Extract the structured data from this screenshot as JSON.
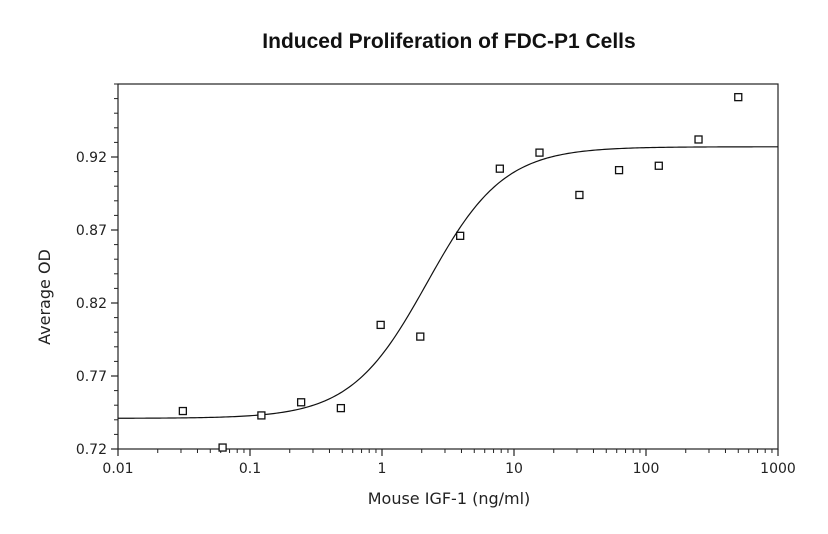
{
  "chart_data": {
    "type": "scatter",
    "title": "Induced Proliferation of FDC-P1 Cells",
    "xlabel": "Mouse IGF-1 (ng/ml)",
    "ylabel": "Average OD",
    "x_scale": "log",
    "xlim": [
      0.01,
      1000
    ],
    "ylim": [
      0.72,
      0.97
    ],
    "x_ticks": [
      "0.01",
      "0.1",
      "1",
      "10",
      "100",
      "1000"
    ],
    "y_ticks": [
      "0.72",
      "0.77",
      "0.82",
      "0.87",
      "0.92"
    ],
    "grid": false,
    "points": [
      {
        "x": 0.031,
        "y": 0.746
      },
      {
        "x": 0.062,
        "y": 0.721
      },
      {
        "x": 0.122,
        "y": 0.743
      },
      {
        "x": 0.244,
        "y": 0.752
      },
      {
        "x": 0.488,
        "y": 0.748
      },
      {
        "x": 0.977,
        "y": 0.805
      },
      {
        "x": 1.95,
        "y": 0.797
      },
      {
        "x": 3.91,
        "y": 0.866
      },
      {
        "x": 7.81,
        "y": 0.912
      },
      {
        "x": 15.6,
        "y": 0.923
      },
      {
        "x": 31.3,
        "y": 0.894
      },
      {
        "x": 62.5,
        "y": 0.911
      },
      {
        "x": 125,
        "y": 0.914
      },
      {
        "x": 250,
        "y": 0.932
      },
      {
        "x": 500,
        "y": 0.961
      }
    ],
    "fit_curve": {
      "bottom": 0.741,
      "top": 0.927,
      "ec50": 2.2,
      "hill": 1.5
    }
  }
}
